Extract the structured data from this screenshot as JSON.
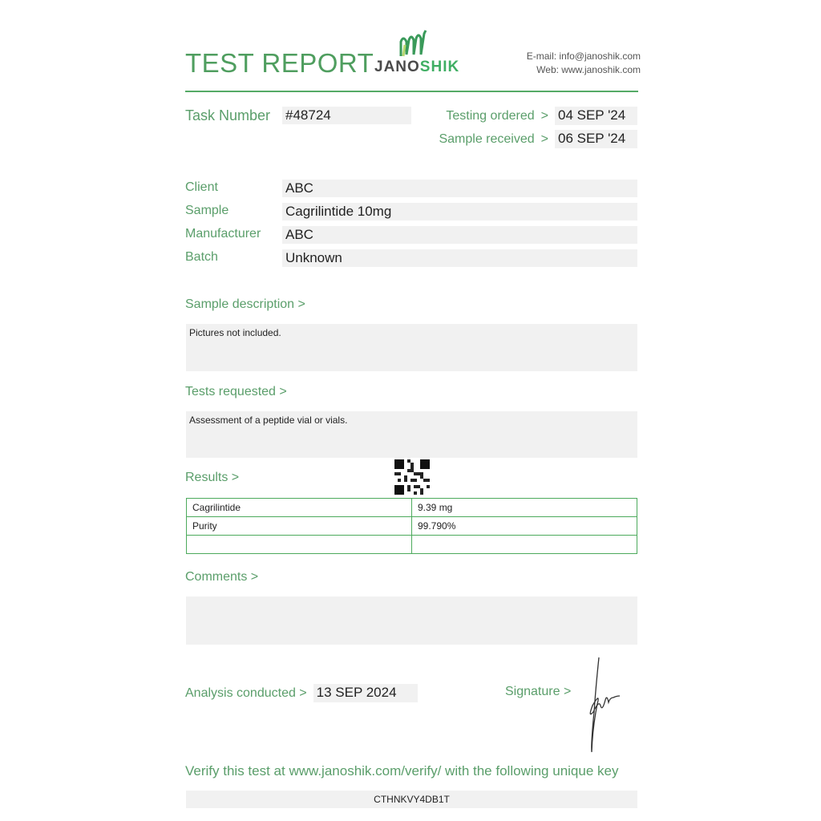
{
  "header": {
    "title": "TEST REPORT",
    "brand": {
      "part1": "JANO",
      "part2": "SHIK"
    },
    "email": "E-mail: info@janoshik.com",
    "web": "Web: www.janoshik.com"
  },
  "task": {
    "label": "Task Number",
    "value": "#48724"
  },
  "dates": {
    "ordered_label": "Testing ordered",
    "ordered_value": "04 SEP '24",
    "received_label": "Sample received",
    "received_value": "06 SEP '24",
    "arrow": ">"
  },
  "info": [
    {
      "label": "Client",
      "value": "ABC"
    },
    {
      "label": "Sample",
      "value": "Cagrilintide 10mg"
    },
    {
      "label": "Manufacturer",
      "value": "ABC"
    },
    {
      "label": "Batch",
      "value": "Unknown"
    }
  ],
  "sample_description": {
    "label": "Sample description >",
    "text": "Pictures not included."
  },
  "tests_requested": {
    "label": "Tests requested >",
    "text": "Assessment of a peptide vial or vials."
  },
  "results": {
    "label": "Results >",
    "rows": [
      {
        "name": "Cagrilintide",
        "value": "9.39 mg"
      },
      {
        "name": "Purity",
        "value": "99.790%"
      },
      {
        "name": "",
        "value": ""
      }
    ]
  },
  "comments": {
    "label": "Comments >",
    "text": ""
  },
  "analysis": {
    "label": "Analysis conducted >",
    "value": "13 SEP 2024"
  },
  "signature": {
    "label": "Signature >"
  },
  "verify": {
    "text": "Verify this test at www.janoshik.com/verify/ with the following unique key",
    "key": "CTHNKVY4DB1T"
  },
  "colors": {
    "accent": "#55aa66",
    "label": "#5a9e6a",
    "field_bg": "#f1f1f1"
  }
}
